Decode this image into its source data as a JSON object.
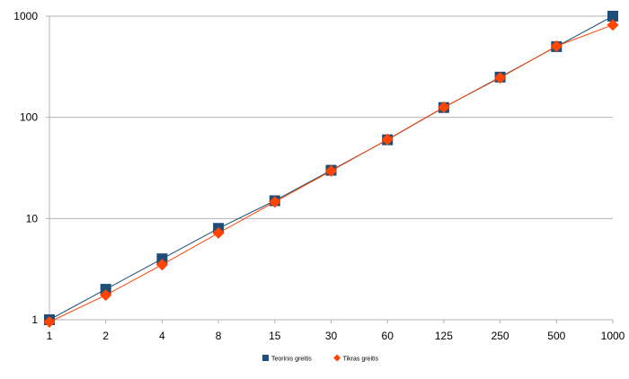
{
  "chart_data": {
    "type": "line",
    "title": "",
    "xlabel": "",
    "ylabel": "",
    "y_scale": "log",
    "ylim": [
      1,
      1000
    ],
    "y_ticks": [
      "1",
      "10",
      "100",
      "1000"
    ],
    "categories": [
      "1",
      "2",
      "4",
      "8",
      "15",
      "30",
      "60",
      "125",
      "250",
      "500",
      "1000"
    ],
    "grid": "horizontal",
    "legend_position": "bottom",
    "series": [
      {
        "name": "Teorinis greitis",
        "color": "#1f4e79",
        "marker": "square",
        "values": [
          1,
          2,
          4,
          8,
          15,
          30,
          60,
          125,
          250,
          500,
          1000
        ]
      },
      {
        "name": "Tikras greitis",
        "color": "#ff4500",
        "marker": "diamond",
        "values": [
          0.95,
          1.75,
          3.5,
          7.2,
          14.6,
          29.5,
          60.5,
          126,
          246,
          505,
          820
        ]
      }
    ]
  }
}
